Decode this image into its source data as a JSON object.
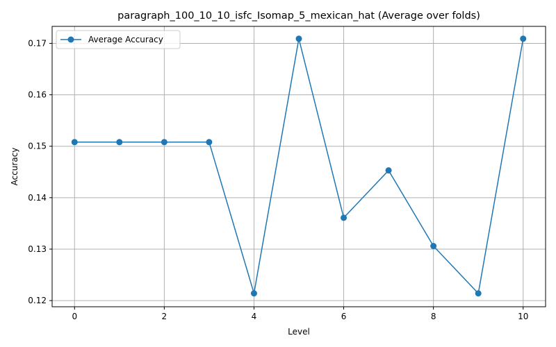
{
  "chart_data": {
    "type": "line",
    "title": "paragraph_100_10_10_isfc_Isomap_5_mexican_hat (Average over folds)",
    "xlabel": "Level",
    "ylabel": "Accuracy",
    "xlim": [
      -0.5,
      10.5
    ],
    "ylim": [
      0.1188,
      0.1733
    ],
    "x_ticks": [
      0,
      2,
      4,
      6,
      8,
      10
    ],
    "x_tick_labels": [
      "0",
      "2",
      "4",
      "6",
      "8",
      "10"
    ],
    "y_ticks": [
      0.12,
      0.13,
      0.14,
      0.15,
      0.16,
      0.17
    ],
    "y_tick_labels": [
      "0.12",
      "0.13",
      "0.14",
      "0.15",
      "0.16",
      "0.17"
    ],
    "grid": true,
    "legend_position": "top-left",
    "series": [
      {
        "name": "Average Accuracy",
        "color": "#1f77b4",
        "marker": "circle",
        "x": [
          0,
          1,
          2,
          3,
          4,
          5,
          6,
          7,
          8,
          9,
          10
        ],
        "y": [
          0.1508,
          0.1508,
          0.1508,
          0.1508,
          0.1214,
          0.1709,
          0.1361,
          0.1453,
          0.1306,
          0.1214,
          0.1709
        ]
      }
    ]
  }
}
